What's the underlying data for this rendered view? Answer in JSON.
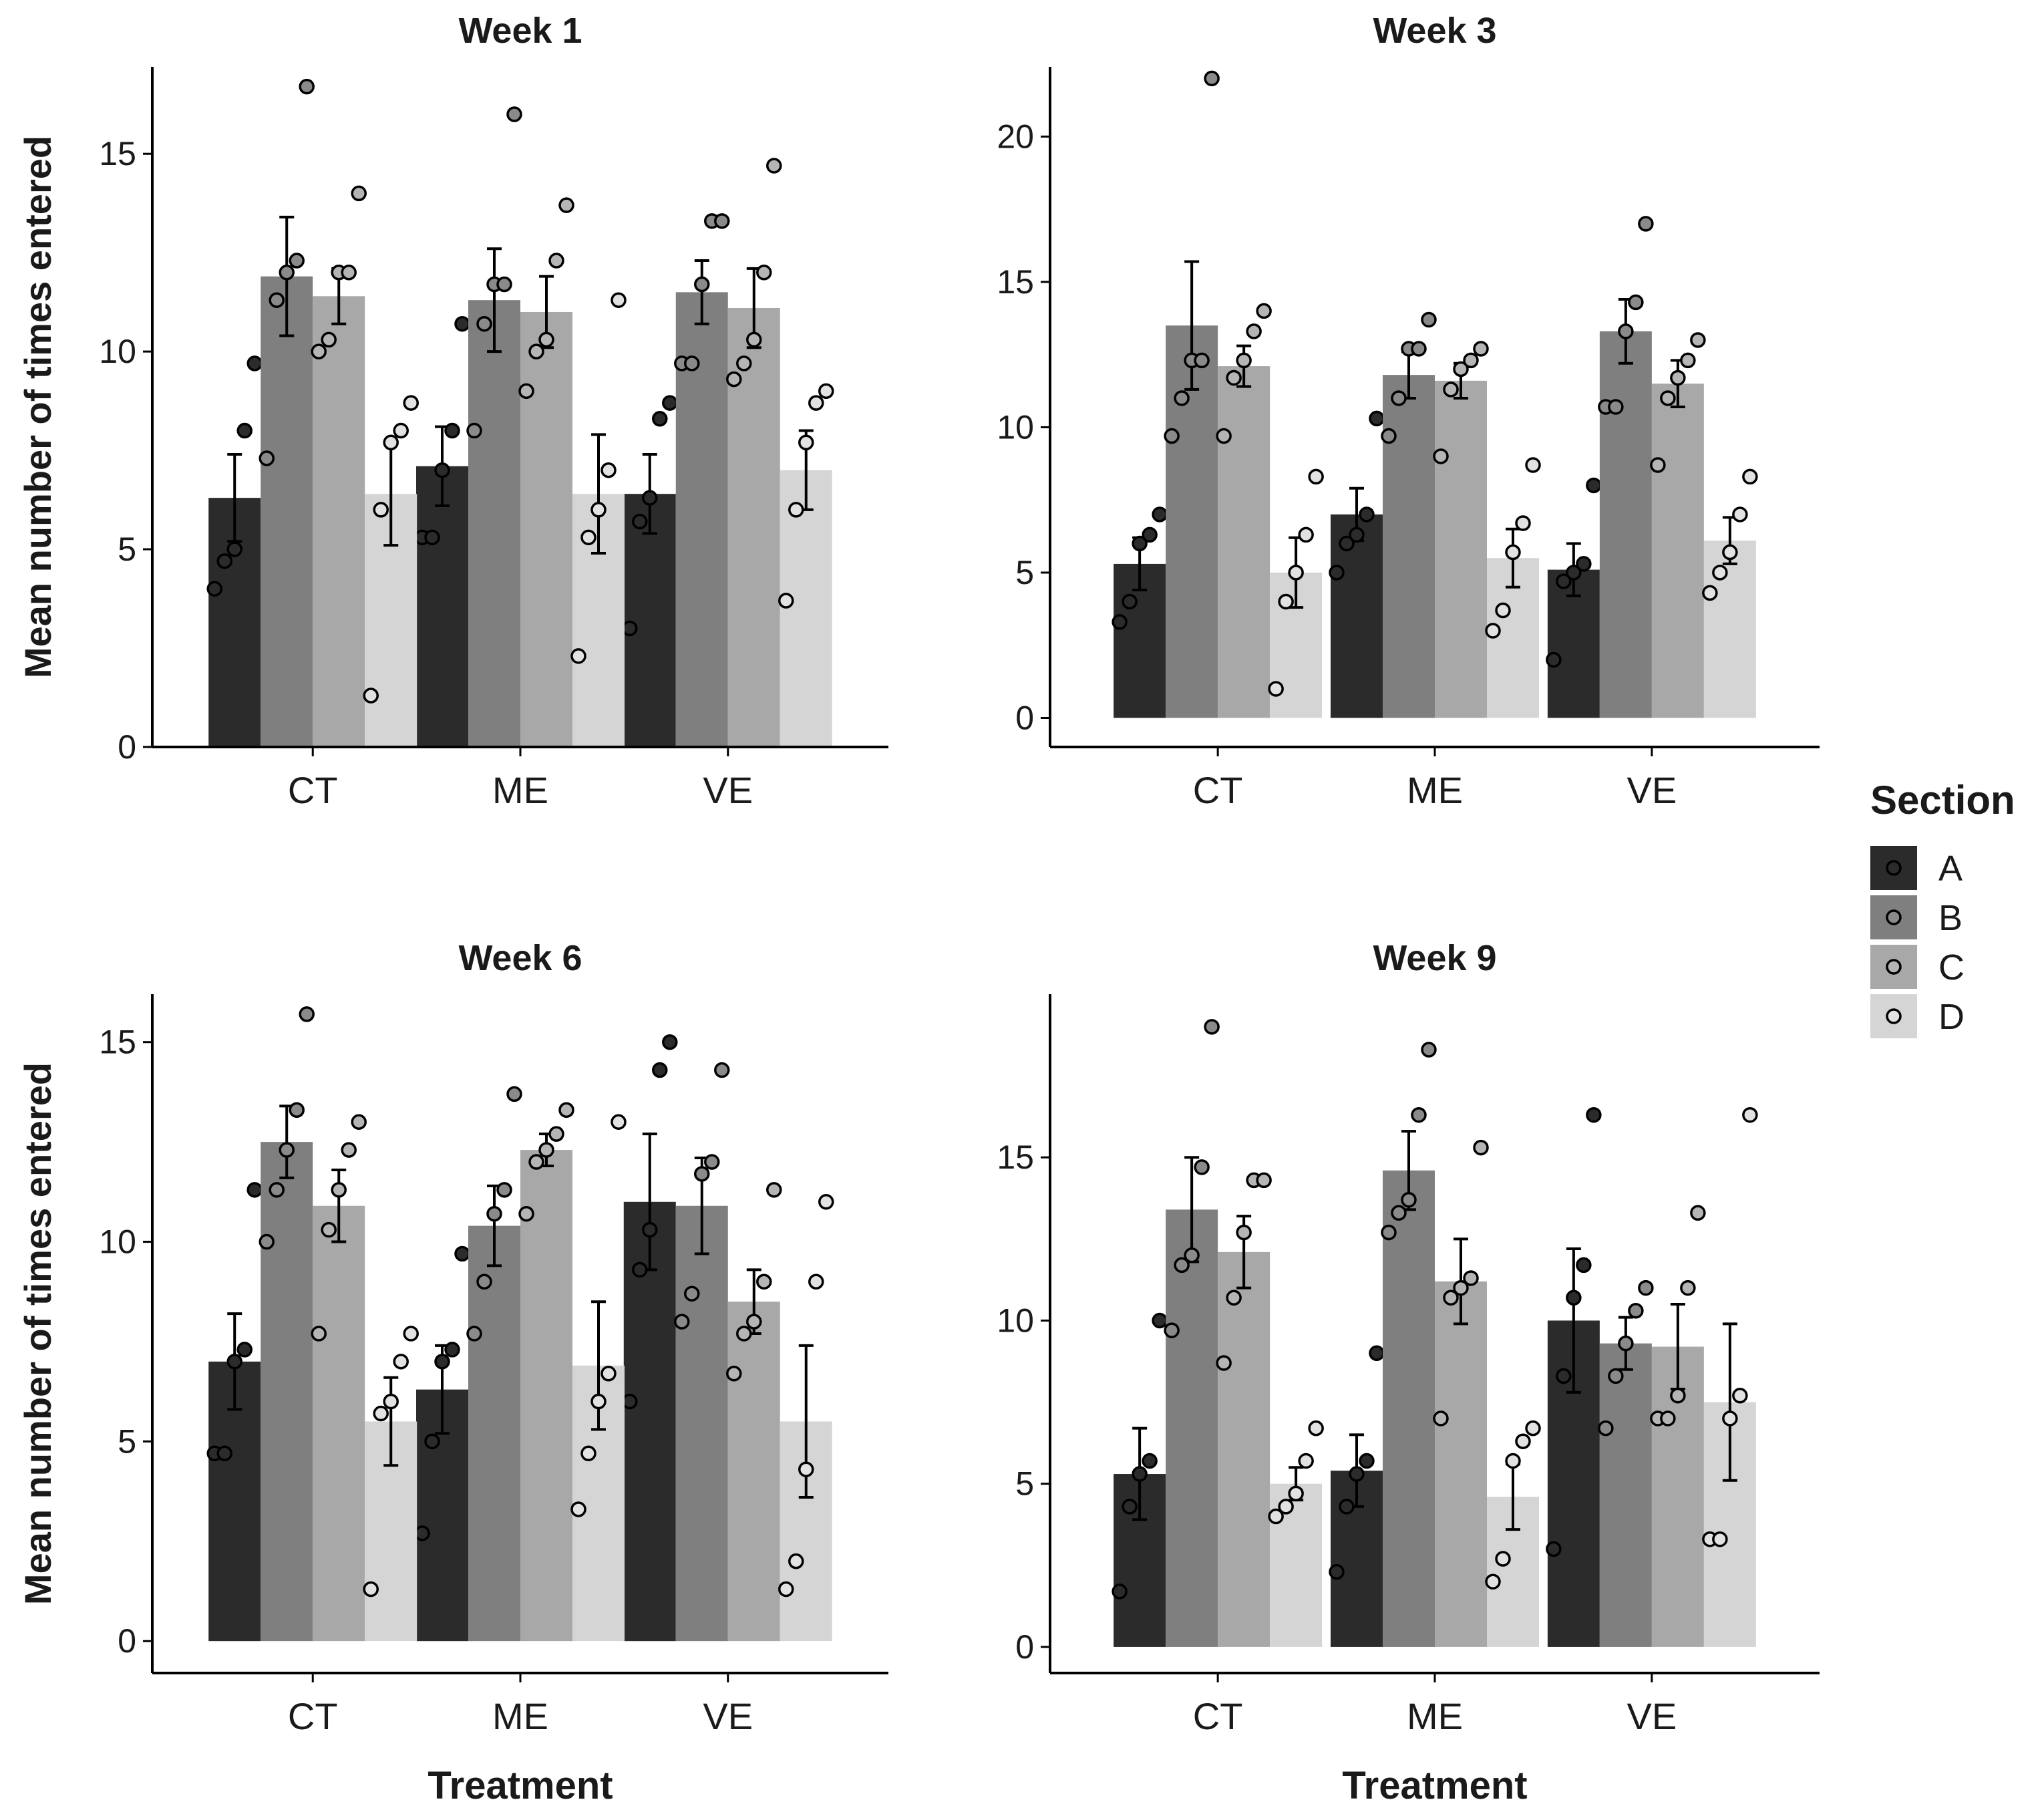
{
  "chart_data": {
    "type": "bar",
    "xlabel": "Treatment",
    "ylabel": "Mean number of times entered",
    "categories": [
      "CT",
      "ME",
      "VE"
    ],
    "legend": {
      "title": "Section",
      "position": "right",
      "entries": [
        "A",
        "B",
        "C",
        "D"
      ]
    },
    "colors": {
      "A": "#2b2b2b",
      "B": "#7f7f7f",
      "C": "#a8a8a8",
      "D": "#d5d5d5",
      "pointA": "#2b2b2b",
      "pointB": "#8a8a8a",
      "pointC": "#b5b5b5",
      "pointD": "#e2e2e2"
    },
    "panels": [
      {
        "title": "Week 1",
        "ylim": [
          0,
          17.2
        ],
        "yticks": [
          0,
          5,
          10,
          15
        ],
        "series": [
          {
            "name": "A",
            "means": [
              6.3,
              7.1,
              6.4
            ],
            "se": [
              1.1,
              1.0,
              1.0
            ],
            "points": [
              [
                4,
                4.7,
                5,
                8,
                9.7
              ],
              [
                5.3,
                5.3,
                7,
                8,
                10.7
              ],
              [
                3,
                5.7,
                6.3,
                8.3,
                8.7
              ]
            ]
          },
          {
            "name": "B",
            "means": [
              11.9,
              11.3,
              11.5
            ],
            "se": [
              1.5,
              1.3,
              0.8
            ],
            "points": [
              [
                7.3,
                11.3,
                12,
                12.3,
                16.7
              ],
              [
                8,
                10.7,
                11.7,
                11.7,
                16
              ],
              [
                9.7,
                9.7,
                11.7,
                13.3,
                13.3
              ]
            ]
          },
          {
            "name": "C",
            "means": [
              11.4,
              11.0,
              11.1
            ],
            "se": [
              0.7,
              0.9,
              1.0
            ],
            "points": [
              [
                10,
                10.3,
                12,
                12,
                14
              ],
              [
                9,
                10,
                10.3,
                12.3,
                13.7
              ],
              [
                9.3,
                9.7,
                10.3,
                12,
                14.7
              ]
            ]
          },
          {
            "name": "D",
            "means": [
              6.4,
              6.4,
              7.0
            ],
            "se": [
              1.3,
              1.5,
              1.0
            ],
            "points": [
              [
                1.3,
                6,
                7.7,
                8,
                8.7
              ],
              [
                2.3,
                5.3,
                6,
                7,
                11.3
              ],
              [
                3.7,
                6,
                7.7,
                8.7,
                9
              ]
            ]
          }
        ]
      },
      {
        "title": "Week 3",
        "ylim": [
          -1,
          22.4
        ],
        "yticks": [
          0,
          5,
          10,
          15,
          20
        ],
        "series": [
          {
            "name": "A",
            "means": [
              5.3,
              7.0,
              5.1
            ],
            "se": [
              0.9,
              0.9,
              0.9
            ],
            "points": [
              [
                3.3,
                4,
                6,
                6.3,
                7
              ],
              [
                5,
                6,
                6.3,
                7,
                10.3
              ],
              [
                2,
                4.7,
                5,
                5.3,
                8
              ]
            ]
          },
          {
            "name": "B",
            "means": [
              13.5,
              11.8,
              13.3
            ],
            "se": [
              2.2,
              0.8,
              1.1
            ],
            "points": [
              [
                9.7,
                11,
                12.3,
                12.3,
                22
              ],
              [
                9.7,
                11,
                12.7,
                12.7,
                13.7
              ],
              [
                10.7,
                10.7,
                13.3,
                14.3,
                17
              ]
            ]
          },
          {
            "name": "C",
            "means": [
              12.1,
              11.6,
              11.5
            ],
            "se": [
              0.7,
              0.6,
              0.8
            ],
            "points": [
              [
                9.7,
                11.7,
                12.3,
                13.3,
                14
              ],
              [
                9,
                11.3,
                12,
                12.3,
                12.7
              ],
              [
                8.7,
                11,
                11.7,
                12.3,
                13
              ]
            ]
          },
          {
            "name": "D",
            "means": [
              5.0,
              5.5,
              6.1
            ],
            "se": [
              1.2,
              1.0,
              0.8
            ],
            "points": [
              [
                1,
                4,
                5,
                6.3,
                8.3
              ],
              [
                3,
                3.7,
                5.7,
                6.7,
                8.7
              ],
              [
                4.3,
                5,
                5.7,
                7,
                8.3
              ]
            ]
          }
        ]
      },
      {
        "title": "Week 6",
        "ylim": [
          -0.8,
          16.2
        ],
        "yticks": [
          0,
          5,
          10,
          15
        ],
        "series": [
          {
            "name": "A",
            "means": [
              7.0,
              6.3,
              11.0
            ],
            "se": [
              1.2,
              1.1,
              1.7
            ],
            "points": [
              [
                4.7,
                4.7,
                7,
                7.3,
                11.3
              ],
              [
                2.7,
                5,
                7,
                7.3,
                9.7
              ],
              [
                6,
                9.3,
                10.3,
                14.3,
                15
              ]
            ]
          },
          {
            "name": "B",
            "means": [
              12.5,
              10.4,
              10.9
            ],
            "se": [
              0.9,
              1.0,
              1.2
            ],
            "points": [
              [
                10,
                11.3,
                12.3,
                13.3,
                15.7
              ],
              [
                7.7,
                9,
                10.7,
                11.3,
                13.7
              ],
              [
                8,
                8.7,
                11.7,
                12,
                14.3
              ]
            ]
          },
          {
            "name": "C",
            "means": [
              10.9,
              12.3,
              8.5
            ],
            "se": [
              0.9,
              0.4,
              0.8
            ],
            "points": [
              [
                7.7,
                10.3,
                11.3,
                12.3,
                13
              ],
              [
                10.7,
                12,
                12.3,
                12.7,
                13.3
              ],
              [
                6.7,
                7.7,
                8,
                9,
                11.3
              ]
            ]
          },
          {
            "name": "D",
            "means": [
              5.5,
              6.9,
              5.5
            ],
            "se": [
              1.1,
              1.6,
              1.9
            ],
            "points": [
              [
                1.3,
                5.7,
                6,
                7,
                7.7
              ],
              [
                3.3,
                4.7,
                6,
                6.7,
                13
              ],
              [
                1.3,
                2,
                4.3,
                9,
                11
              ]
            ]
          }
        ]
      },
      {
        "title": "Week 9",
        "ylim": [
          -0.8,
          20
        ],
        "yticks": [
          0,
          5,
          10,
          15
        ],
        "series": [
          {
            "name": "A",
            "means": [
              5.3,
              5.4,
              10.0
            ],
            "se": [
              1.4,
              1.1,
              2.2
            ],
            "points": [
              [
                1.7,
                4.3,
                5.3,
                5.7,
                10
              ],
              [
                2.3,
                4.3,
                5.3,
                5.7,
                9
              ],
              [
                3,
                8.3,
                10.7,
                11.7,
                16.3
              ]
            ]
          },
          {
            "name": "B",
            "means": [
              13.4,
              14.6,
              9.3
            ],
            "se": [
              1.6,
              1.2,
              0.8
            ],
            "points": [
              [
                9.7,
                11.7,
                12,
                14.7,
                19
              ],
              [
                12.7,
                13.3,
                13.7,
                16.3,
                18.3
              ],
              [
                6.7,
                8.3,
                9.3,
                10.3,
                11
              ]
            ]
          },
          {
            "name": "C",
            "means": [
              12.1,
              11.2,
              9.2
            ],
            "se": [
              1.1,
              1.3,
              1.3
            ],
            "points": [
              [
                8.7,
                10.7,
                12.7,
                14.3,
                14.3
              ],
              [
                7,
                10.7,
                11,
                11.3,
                15.3
              ],
              [
                7,
                7,
                7.7,
                11,
                13.3
              ]
            ]
          },
          {
            "name": "D",
            "means": [
              5.0,
              4.6,
              7.5
            ],
            "se": [
              0.5,
              1.0,
              2.4
            ],
            "points": [
              [
                4,
                4.3,
                4.7,
                5.7,
                6.7
              ],
              [
                2,
                2.7,
                5.7,
                6.3,
                6.7
              ],
              [
                3.3,
                3.3,
                7,
                7.7,
                16.3
              ]
            ]
          }
        ]
      }
    ]
  }
}
